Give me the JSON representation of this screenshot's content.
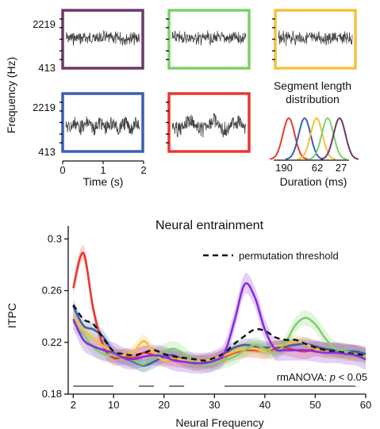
{
  "colors": {
    "purple": "#6b3a6a",
    "green": "#7fd06a",
    "yellow": "#f5c13b",
    "blue": "#3b5fb4",
    "red": "#e8392e",
    "violet": "#8a2be2",
    "black": "#111111"
  },
  "chart_data": [
    {
      "type": "line",
      "panel": "stimulus spectrogram panels",
      "ylabel": "Frequency (Hz)",
      "xlabel": "Time (s)",
      "y_ticks": [
        "2219",
        "413"
      ],
      "x_ticks": [
        "0",
        "1",
        "2"
      ],
      "xlim": [
        0,
        2
      ],
      "panels": [
        {
          "color": "purple",
          "row": 1,
          "pattern": "fast"
        },
        {
          "color": "green",
          "row": 1,
          "pattern": "fast"
        },
        {
          "color": "yellow",
          "row": 1,
          "pattern": "fast"
        },
        {
          "color": "blue",
          "row": 2,
          "pattern": "medium"
        },
        {
          "color": "red",
          "row": 2,
          "pattern": "slow"
        }
      ]
    },
    {
      "type": "line",
      "panel": "segment length distribution",
      "title": "Segment length\ndistribution",
      "title_lines": [
        "Segment length",
        "distribution"
      ],
      "xlabel": "Duration (ms)",
      "x_ticks": [
        "190",
        "62",
        "27"
      ],
      "series": [
        {
          "color": "red",
          "peak_position": 1
        },
        {
          "color": "blue",
          "peak_position": 2
        },
        {
          "color": "yellow",
          "peak_position": 3
        },
        {
          "color": "green",
          "peak_position": 4
        },
        {
          "color": "purple",
          "peak_position": 5
        }
      ]
    },
    {
      "type": "line",
      "title": "Neural entrainment",
      "xlabel": "Neural Frequency",
      "ylabel": "ITPC",
      "xlim": [
        1,
        60
      ],
      "ylim": [
        0.18,
        0.31
      ],
      "x_ticks": [
        2,
        10,
        20,
        30,
        40,
        50,
        60
      ],
      "y_ticks": [
        0.18,
        0.22,
        0.26,
        0.3
      ],
      "legend": {
        "label": "permutation threshold",
        "placement": "top-right"
      },
      "annotation": {
        "prefix": "rmANOVA: ",
        "italic": "p",
        "suffix": " < 0.05"
      },
      "significance_bars": [
        [
          2,
          10
        ],
        [
          15,
          18
        ],
        [
          21,
          24
        ],
        [
          32,
          58
        ]
      ],
      "x": [
        2,
        4,
        6,
        8,
        10,
        12,
        14,
        16,
        18,
        20,
        22,
        24,
        26,
        28,
        30,
        32,
        34,
        36,
        38,
        40,
        42,
        44,
        46,
        48,
        50,
        52,
        54,
        56,
        58,
        60
      ],
      "series": [
        {
          "color": "red",
          "band": 0.006,
          "values": [
            0.262,
            0.289,
            0.245,
            0.217,
            0.208,
            0.209,
            0.208,
            0.212,
            0.21,
            0.209,
            0.207,
            0.206,
            0.204,
            0.205,
            0.206,
            0.209,
            0.212,
            0.214,
            0.214,
            0.213,
            0.215,
            0.216,
            0.214,
            0.213,
            0.215,
            0.214,
            0.214,
            0.213,
            0.212,
            0.211
          ]
        },
        {
          "color": "blue",
          "band": 0.005,
          "values": [
            0.248,
            0.233,
            0.23,
            0.224,
            0.212,
            0.208,
            0.205,
            0.202,
            0.205,
            0.209,
            0.21,
            0.206,
            0.205,
            0.205,
            0.206,
            0.211,
            0.216,
            0.218,
            0.217,
            0.216,
            0.216,
            0.217,
            0.218,
            0.219,
            0.217,
            0.215,
            0.214,
            0.213,
            0.213,
            0.211
          ]
        },
        {
          "color": "yellow",
          "band": 0.005,
          "values": [
            0.24,
            0.23,
            0.223,
            0.217,
            0.212,
            0.21,
            0.213,
            0.221,
            0.212,
            0.206,
            0.208,
            0.206,
            0.205,
            0.206,
            0.207,
            0.21,
            0.213,
            0.215,
            0.215,
            0.213,
            0.217,
            0.218,
            0.221,
            0.219,
            0.215,
            0.213,
            0.212,
            0.211,
            0.21,
            0.209
          ]
        },
        {
          "color": "green",
          "band": 0.006,
          "values": [
            0.236,
            0.226,
            0.216,
            0.211,
            0.21,
            0.208,
            0.206,
            0.203,
            0.209,
            0.213,
            0.215,
            0.211,
            0.205,
            0.203,
            0.204,
            0.206,
            0.209,
            0.214,
            0.218,
            0.215,
            0.212,
            0.219,
            0.233,
            0.239,
            0.234,
            0.223,
            0.215,
            0.213,
            0.211,
            0.209
          ]
        },
        {
          "color": "violet",
          "band": 0.008,
          "values": [
            0.238,
            0.222,
            0.217,
            0.214,
            0.212,
            0.208,
            0.207,
            0.209,
            0.21,
            0.209,
            0.206,
            0.205,
            0.204,
            0.204,
            0.206,
            0.212,
            0.237,
            0.265,
            0.255,
            0.23,
            0.215,
            0.214,
            0.214,
            0.214,
            0.213,
            0.212,
            0.212,
            0.211,
            0.21,
            0.207
          ]
        },
        {
          "color": "black",
          "dashed": true,
          "values": [
            0.249,
            0.238,
            0.234,
            0.223,
            0.213,
            0.211,
            0.21,
            0.212,
            0.214,
            0.211,
            0.209,
            0.208,
            0.207,
            0.206,
            0.208,
            0.212,
            0.219,
            0.225,
            0.23,
            0.229,
            0.224,
            0.222,
            0.222,
            0.219,
            0.216,
            0.214,
            0.213,
            0.212,
            0.211,
            0.21
          ]
        }
      ]
    }
  ]
}
